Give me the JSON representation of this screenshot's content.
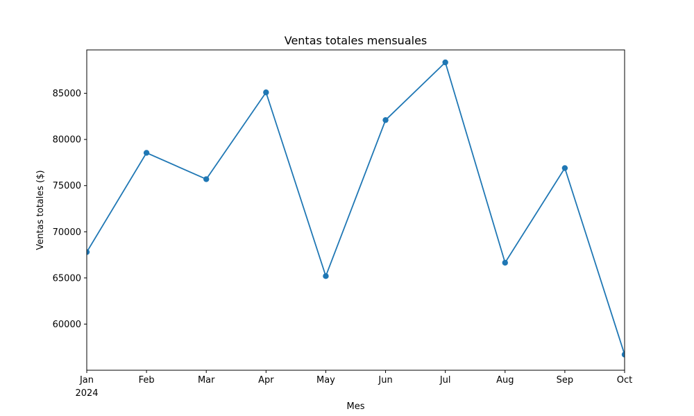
{
  "chart_data": {
    "type": "line",
    "title": "Ventas totales mensuales",
    "xlabel": "Mes",
    "ylabel": "Ventas totales ($)",
    "categories": [
      "Jan",
      "Feb",
      "Mar",
      "Apr",
      "May",
      "Jun",
      "Jul",
      "Aug",
      "Sep",
      "Oct"
    ],
    "x_year_label": "2024",
    "values": [
      67800,
      78550,
      75700,
      85100,
      65200,
      82100,
      88350,
      66650,
      76900,
      56700
    ],
    "ylim": [
      55000,
      89700
    ],
    "yticks": [
      60000,
      65000,
      70000,
      75000,
      80000,
      85000
    ],
    "grid": false,
    "series_color": "#1f77b4"
  }
}
